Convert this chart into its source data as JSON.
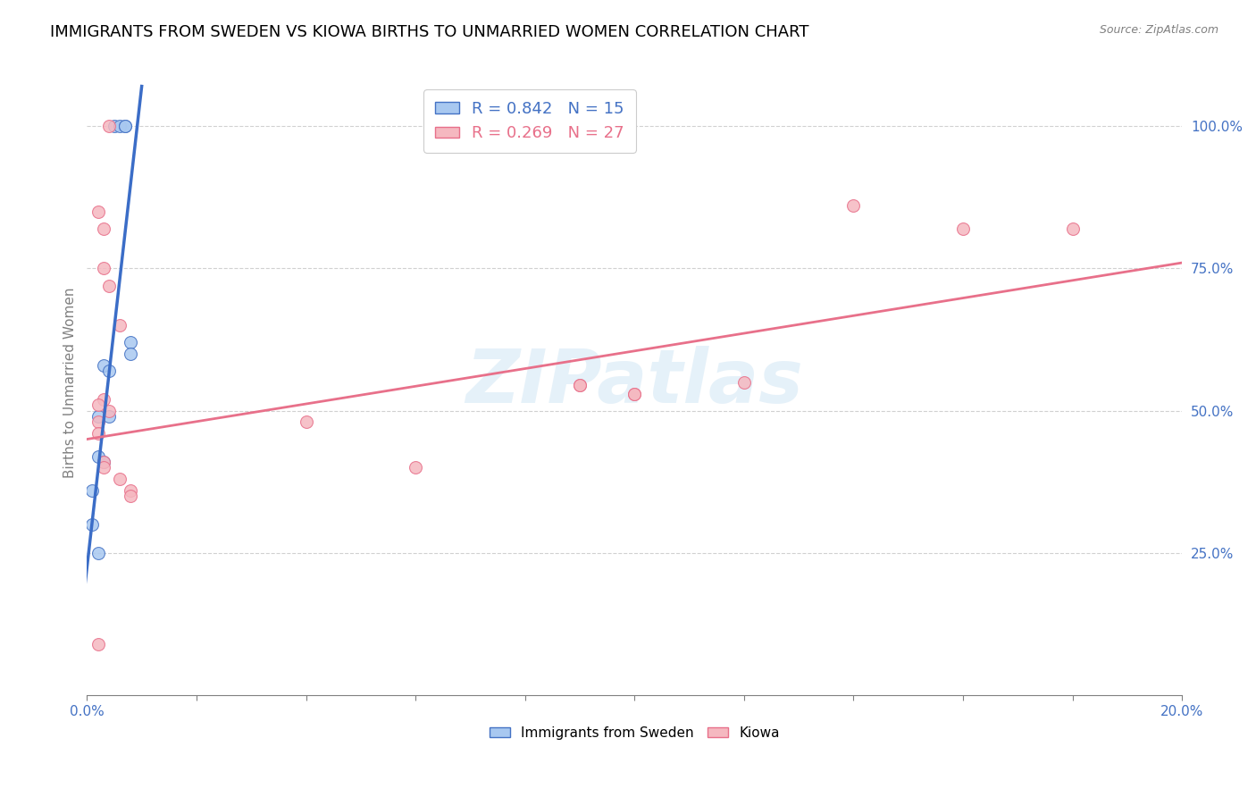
{
  "title": "IMMIGRANTS FROM SWEDEN VS KIOWA BIRTHS TO UNMARRIED WOMEN CORRELATION CHART",
  "source": "Source: ZipAtlas.com",
  "ylabel": "Births to Unmarried Women",
  "watermark": "ZIPatlas",
  "legend_blue_r": "R = 0.842",
  "legend_blue_n": "N = 15",
  "legend_pink_r": "R = 0.269",
  "legend_pink_n": "N = 27",
  "blue_fill": "#A8C8F0",
  "pink_fill": "#F5B8C0",
  "blue_edge": "#4472C4",
  "pink_edge": "#E8708A",
  "blue_line": "#3B6DC7",
  "pink_line": "#E8708A",
  "sweden_points_x": [
    0.005,
    0.006,
    0.007,
    0.007,
    0.008,
    0.008,
    0.003,
    0.004,
    0.004,
    0.002,
    0.002,
    0.003,
    0.001,
    0.001,
    0.002
  ],
  "sweden_points_y": [
    100.0,
    100.0,
    100.0,
    100.0,
    62.0,
    60.0,
    58.0,
    57.0,
    49.0,
    49.0,
    42.0,
    41.0,
    36.0,
    30.0,
    25.0
  ],
  "kiowa_points_x": [
    0.004,
    0.002,
    0.003,
    0.003,
    0.004,
    0.006,
    0.003,
    0.004,
    0.002,
    0.002,
    0.002,
    0.003,
    0.003,
    0.006,
    0.008,
    0.04,
    0.06,
    0.1,
    0.1,
    0.12,
    0.14,
    0.16,
    0.18,
    0.09,
    0.09,
    0.002,
    0.008
  ],
  "kiowa_points_y": [
    100.0,
    85.0,
    82.0,
    75.0,
    72.0,
    65.0,
    52.0,
    50.0,
    51.0,
    48.0,
    46.0,
    41.0,
    40.0,
    38.0,
    36.0,
    48.0,
    40.0,
    53.0,
    53.0,
    55.0,
    86.0,
    82.0,
    82.0,
    54.5,
    54.5,
    9.0,
    35.0
  ],
  "sweden_line_x": [
    -0.001,
    0.01
  ],
  "sweden_line_y": [
    14.0,
    107.0
  ],
  "kiowa_line_x": [
    0.0,
    0.2
  ],
  "kiowa_line_y": [
    45.0,
    76.0
  ],
  "xlim": [
    0.0,
    0.2
  ],
  "ylim": [
    0.0,
    110.0
  ],
  "yticks": [
    25.0,
    50.0,
    75.0,
    100.0
  ],
  "ytick_labels": [
    "25.0%",
    "50.0%",
    "75.0%",
    "100.0%"
  ],
  "xticks": [
    0.0,
    0.02,
    0.04,
    0.06,
    0.08,
    0.1,
    0.12,
    0.14,
    0.16,
    0.18,
    0.2
  ],
  "xtick_labels": [
    "0.0%",
    "",
    "",
    "",
    "",
    "",
    "",
    "",
    "",
    "",
    "20.0%"
  ],
  "marker_size": 100,
  "title_fontsize": 13,
  "ylabel_fontsize": 11,
  "tick_fontsize": 11,
  "legend_fontsize": 13,
  "source_fontsize": 9,
  "tick_color": "#4472C4",
  "grid_color": "#CCCCCC",
  "watermark_color": "#D5E8F5",
  "watermark_fontsize": 60
}
